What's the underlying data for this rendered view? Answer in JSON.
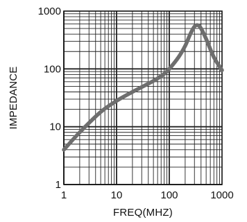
{
  "chart_data": {
    "type": "line",
    "title": "",
    "xlabel": "FREQ(MHZ)",
    "ylabel": "IMPEDANCE",
    "x_scale": "log",
    "y_scale": "log",
    "xlim": [
      1,
      1000
    ],
    "ylim": [
      1,
      1000
    ],
    "x_ticks": [
      1,
      10,
      100,
      1000
    ],
    "y_ticks": [
      1,
      10,
      100,
      1000
    ],
    "x_tick_labels": [
      "1",
      "10",
      "100",
      "1000"
    ],
    "y_tick_labels": [
      "1",
      "10",
      "100",
      "1000"
    ],
    "grid": true,
    "legend": "none",
    "series": [
      {
        "color": "#6e6e6e",
        "x": [
          1,
          2,
          5,
          10,
          20,
          50,
          80,
          100,
          150,
          200,
          250,
          300,
          350,
          400,
          500,
          700,
          1000
        ],
        "y": [
          4,
          8,
          18,
          28,
          40,
          62,
          82,
          100,
          160,
          250,
          400,
          540,
          570,
          500,
          330,
          160,
          95
        ]
      }
    ]
  }
}
